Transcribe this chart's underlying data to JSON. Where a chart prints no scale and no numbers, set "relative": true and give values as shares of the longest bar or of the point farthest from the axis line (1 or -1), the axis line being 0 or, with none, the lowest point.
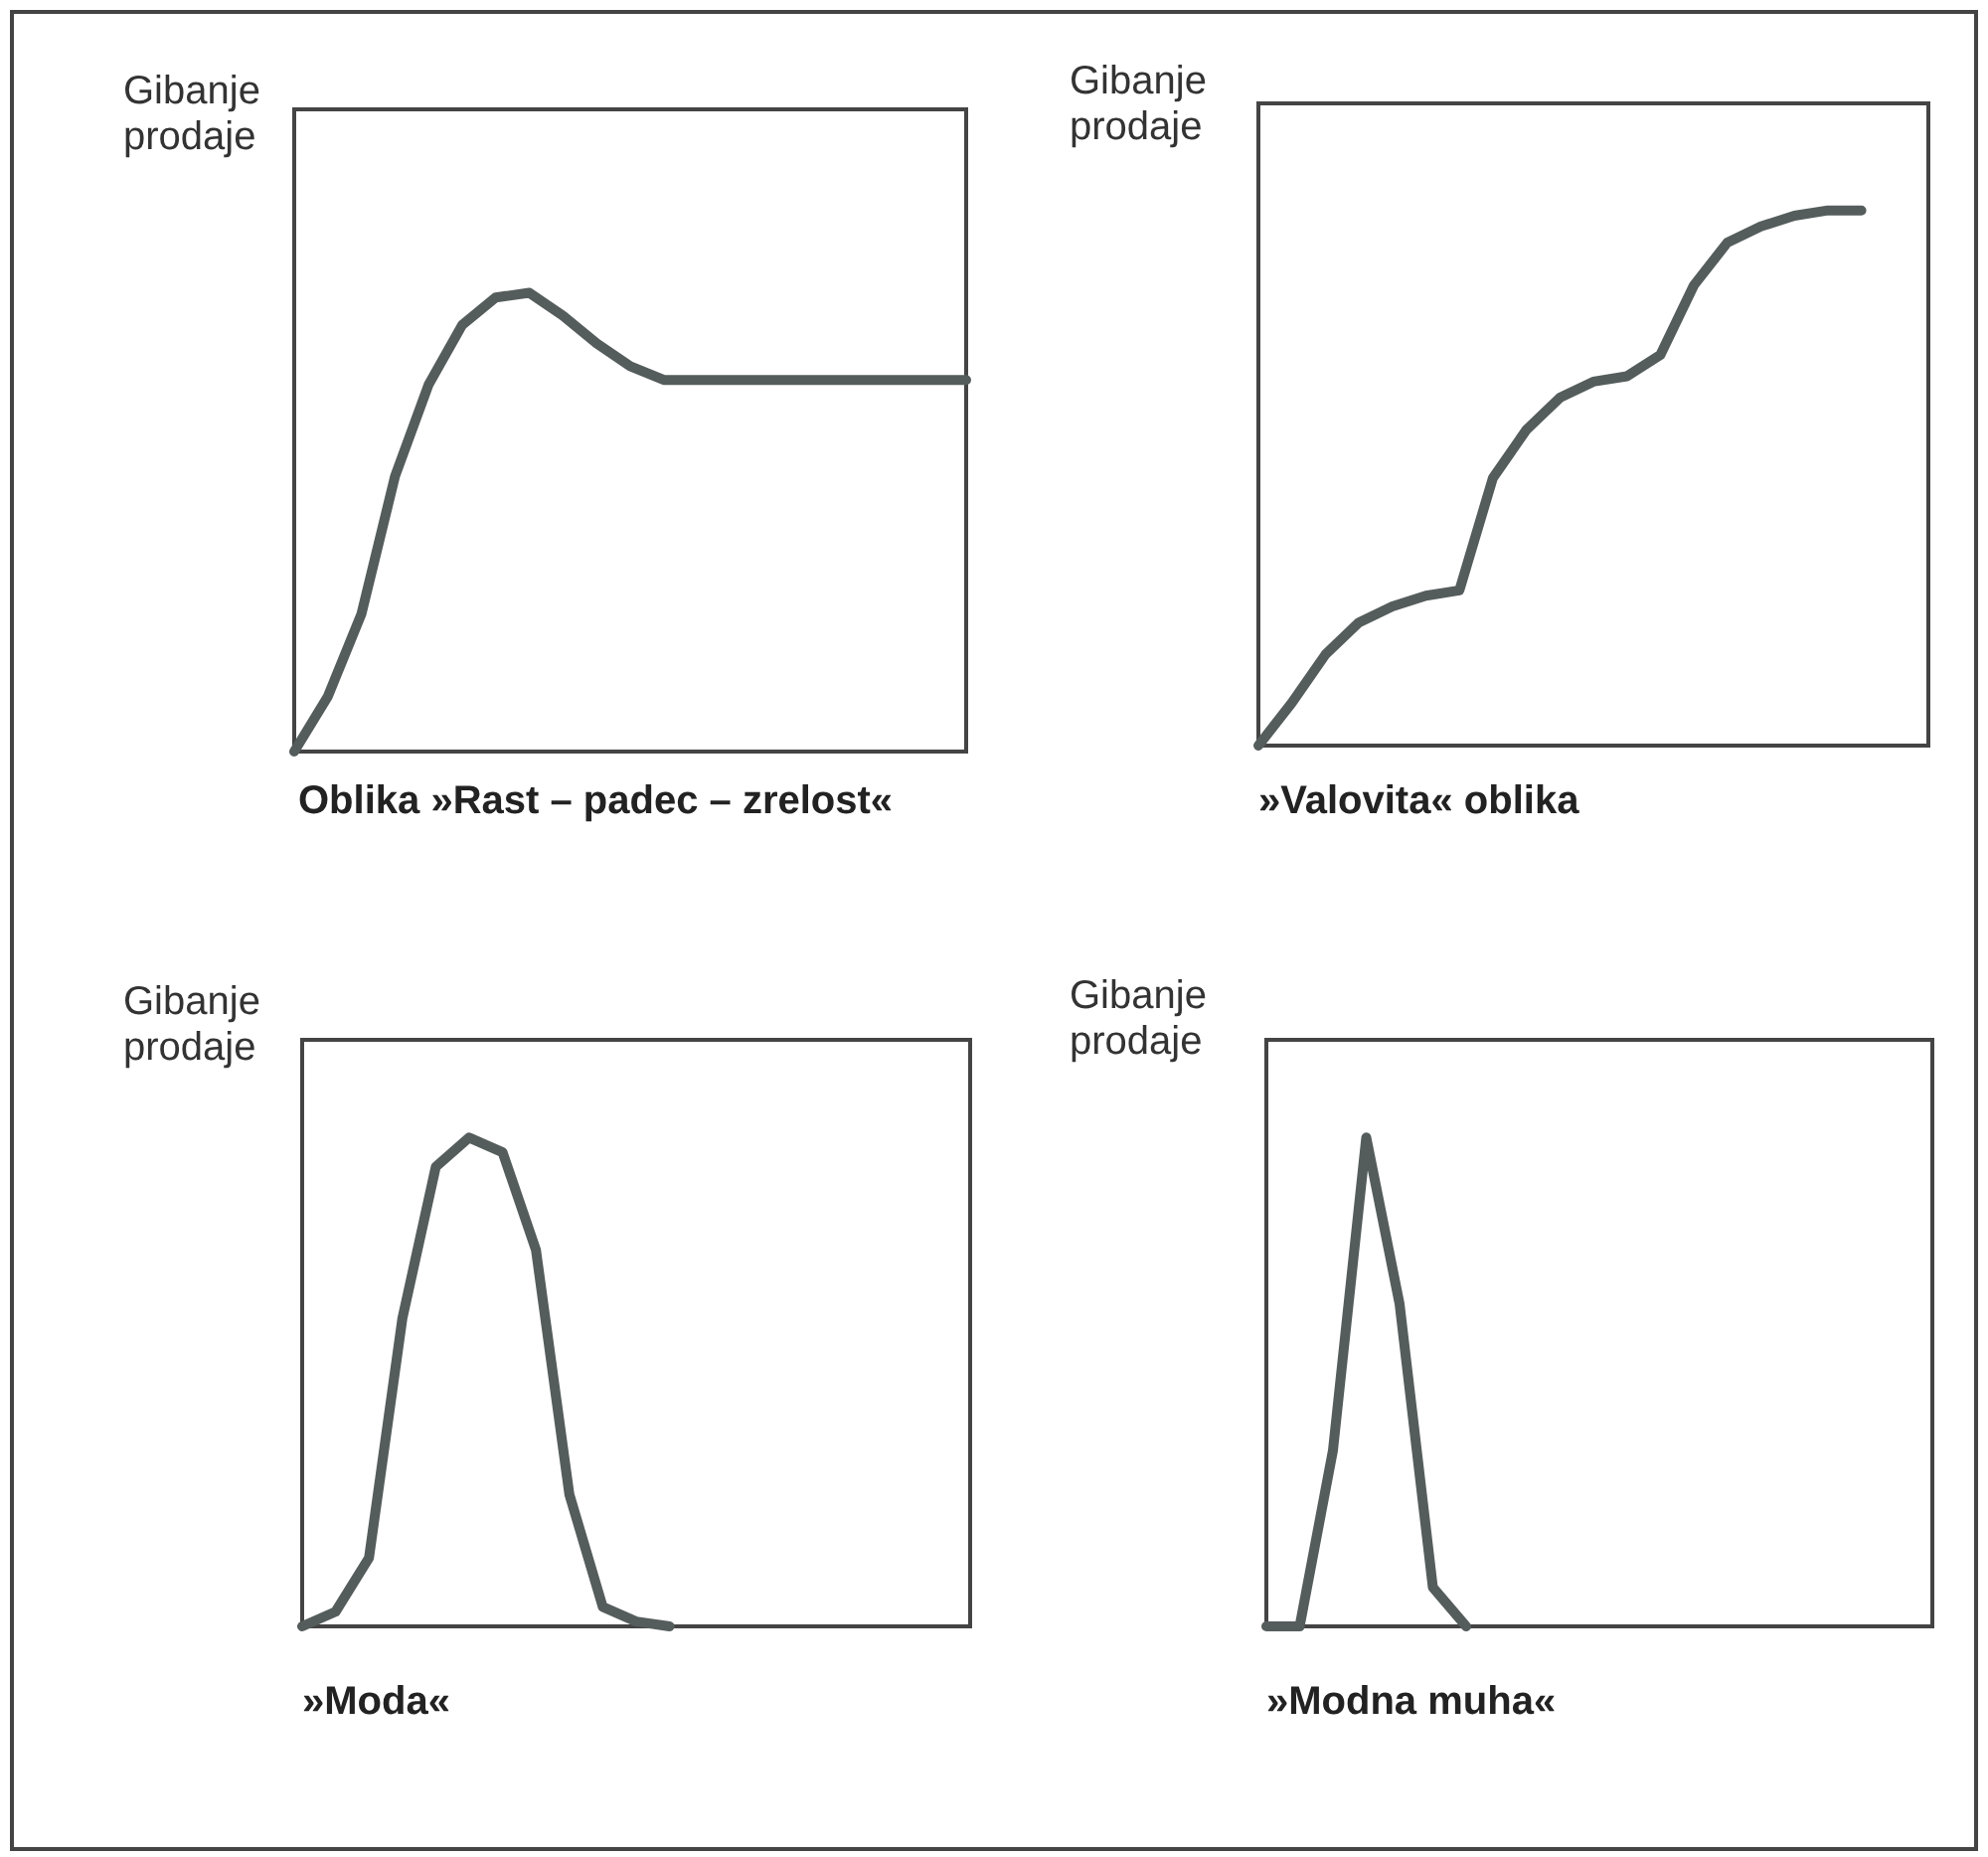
{
  "chart_data": [
    {
      "type": "line",
      "title": "Oblika »Rast – padec – zrelost«",
      "ylabel": "Gibanje prodaje",
      "relative": true,
      "categories": [
        null,
        null,
        null,
        null,
        null,
        null,
        null,
        null,
        null,
        null,
        null,
        null,
        null,
        null,
        null,
        null,
        null,
        null,
        null,
        null,
        null
      ],
      "series": [
        {
          "color": "#555c5c",
          "values": [
            0,
            0.12,
            0.3,
            0.6,
            0.8,
            0.93,
            0.99,
            1,
            0.95,
            0.89,
            0.84,
            0.81,
            0.81,
            0.81,
            0.81,
            0.81,
            0.81,
            0.81,
            0.81,
            0.81,
            0.81
          ]
        }
      ]
    },
    {
      "type": "line",
      "title": "»Valovita« oblika",
      "ylabel": "Gibanje prodaje",
      "relative": true,
      "categories": [
        null,
        null,
        null,
        null,
        null,
        null,
        null,
        null,
        null,
        null,
        null,
        null,
        null,
        null,
        null,
        null,
        null,
        null,
        null,
        null,
        null
      ],
      "series": [
        {
          "color": "#555c5c",
          "values": [
            0,
            0.08,
            0.17,
            0.23,
            0.26,
            0.28,
            0.29,
            0.5,
            0.59,
            0.65,
            0.68,
            0.69,
            0.73,
            0.86,
            0.94,
            0.97,
            0.99,
            1,
            1,
            null,
            null
          ]
        }
      ]
    },
    {
      "type": "line",
      "title": "»Moda«",
      "ylabel": "Gibanje prodaje",
      "relative": true,
      "categories": [
        null,
        null,
        null,
        null,
        null,
        null,
        null,
        null,
        null,
        null,
        null,
        null,
        null,
        null,
        null,
        null,
        null,
        null,
        null,
        null,
        null
      ],
      "series": [
        {
          "color": "#555c5c",
          "values": [
            0,
            0.03,
            0.14,
            0.63,
            0.94,
            1,
            0.97,
            0.77,
            0.27,
            0.04,
            0.01,
            0,
            null,
            null,
            null,
            null,
            null,
            null,
            null,
            null,
            null
          ]
        }
      ]
    },
    {
      "type": "line",
      "title": "»Modna muha«",
      "ylabel": "Gibanje prodaje",
      "relative": true,
      "categories": [
        null,
        null,
        null,
        null,
        null,
        null,
        null,
        null,
        null,
        null,
        null,
        null,
        null,
        null,
        null,
        null,
        null,
        null,
        null,
        null,
        null
      ],
      "series": [
        {
          "color": "#555c5c",
          "values": [
            0,
            0,
            0.36,
            1,
            0.66,
            0.08,
            0,
            null,
            null,
            null,
            null,
            null,
            null,
            null,
            null,
            null,
            null,
            null,
            null,
            null,
            null
          ]
        }
      ]
    }
  ]
}
